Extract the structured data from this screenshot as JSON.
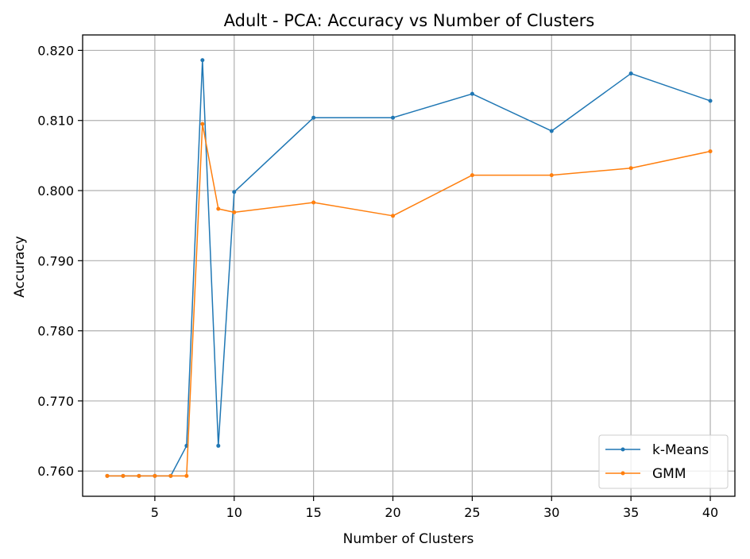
{
  "chart_data": {
    "type": "line",
    "title": "Adult - PCA: Accuracy vs Number of Clusters",
    "xlabel": "Number of Clusters",
    "ylabel": "Accuracy",
    "x": [
      2,
      3,
      4,
      5,
      6,
      7,
      8,
      9,
      10,
      15,
      20,
      25,
      30,
      35,
      40
    ],
    "xlim": [
      0.45,
      41.55
    ],
    "ylim": [
      0.7564,
      0.8222
    ],
    "xticks": [
      5,
      10,
      15,
      20,
      25,
      30,
      35,
      40
    ],
    "xtick_labels": [
      "5",
      "10",
      "15",
      "20",
      "25",
      "30",
      "35",
      "40"
    ],
    "yticks": [
      0.76,
      0.77,
      0.78,
      0.79,
      0.8,
      0.81,
      0.82
    ],
    "ytick_labels": [
      "0.760",
      "0.770",
      "0.780",
      "0.790",
      "0.800",
      "0.810",
      "0.820"
    ],
    "grid": true,
    "legend_position": "lower-right",
    "series": [
      {
        "name": "k-Means",
        "color": "#1f77b4",
        "values": [
          0.7593,
          0.7593,
          0.7593,
          0.7593,
          0.7593,
          0.7636,
          0.8186,
          0.7636,
          0.7998,
          0.8104,
          0.8104,
          0.8138,
          0.8085,
          0.8167,
          0.8128
        ]
      },
      {
        "name": "GMM",
        "color": "#ff7f0e",
        "values": [
          0.7593,
          0.7593,
          0.7593,
          0.7593,
          0.7593,
          0.7593,
          0.8095,
          0.7974,
          0.7969,
          0.7983,
          0.7964,
          0.8022,
          0.8022,
          0.8032,
          0.8056
        ]
      }
    ]
  }
}
